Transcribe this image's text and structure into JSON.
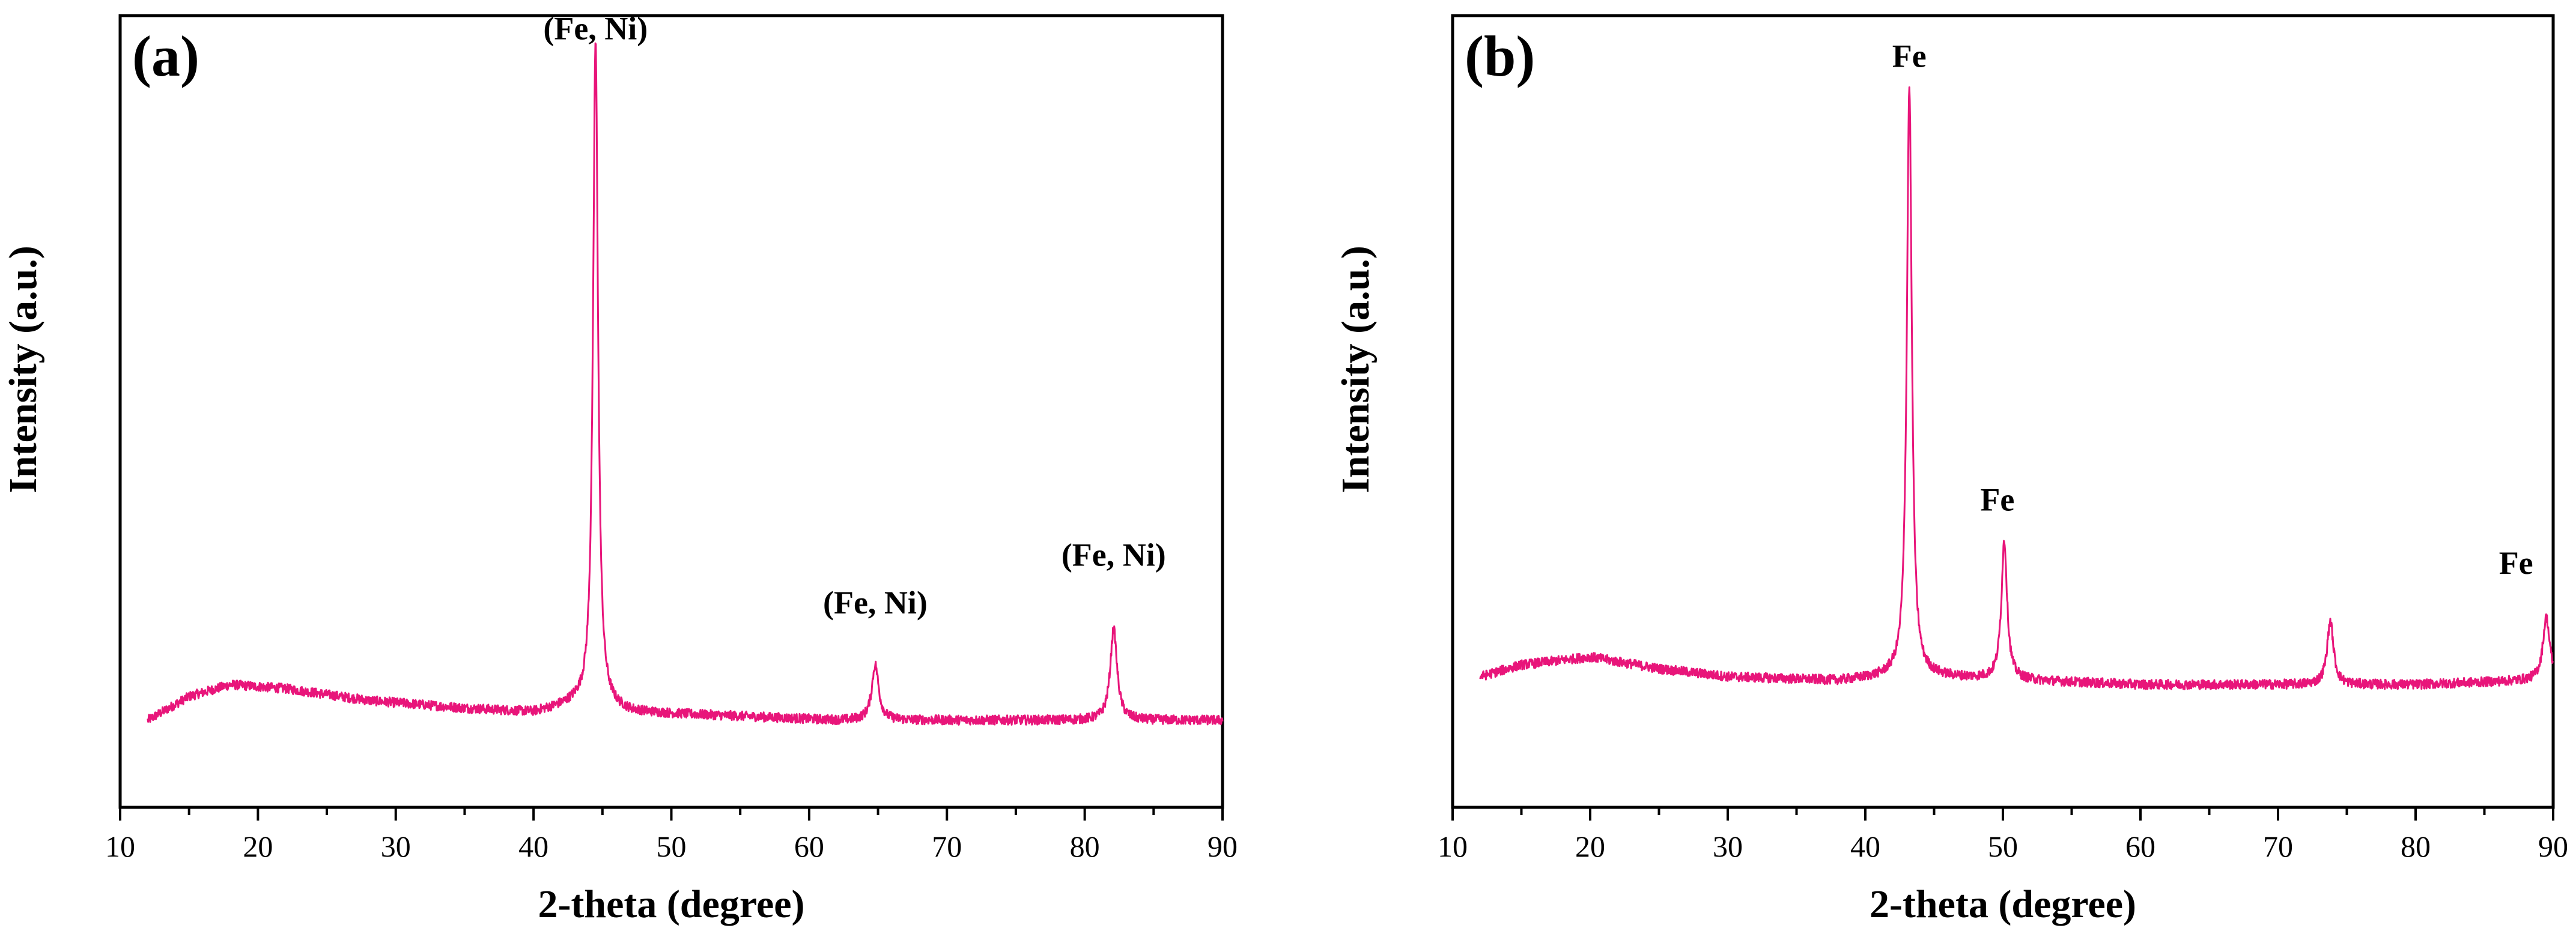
{
  "chart_data": [
    {
      "type": "line",
      "panel_label": "(a)",
      "xlabel": "2-theta (degree)",
      "ylabel": "Intensity (a.u.)",
      "xlim": [
        10,
        90
      ],
      "ylim": [
        0,
        1
      ],
      "xticks": [
        "10",
        "20",
        "30",
        "40",
        "50",
        "60",
        "70",
        "80",
        "90"
      ],
      "series_color": "#e8157a",
      "baseline": [
        [
          12,
          0.11
        ],
        [
          15,
          0.14
        ],
        [
          18,
          0.155
        ],
        [
          22,
          0.15
        ],
        [
          28,
          0.135
        ],
        [
          35,
          0.125
        ],
        [
          40,
          0.12
        ],
        [
          43,
          0.13
        ],
        [
          47,
          0.12
        ],
        [
          55,
          0.115
        ],
        [
          62,
          0.11
        ],
        [
          70,
          0.11
        ],
        [
          78,
          0.11
        ],
        [
          85,
          0.11
        ],
        [
          90,
          0.11
        ]
      ],
      "peaks": [
        {
          "center": 44.5,
          "height": 0.84,
          "width": 0.22
        },
        {
          "center": 64.8,
          "height": 0.07,
          "width": 0.3
        },
        {
          "center": 82.1,
          "height": 0.115,
          "width": 0.3
        }
      ],
      "annotations": [
        {
          "text": "(Fe, Ni)",
          "x": 44.5,
          "y": 0.97
        },
        {
          "text": "(Fe, Ni)",
          "x": 64.8,
          "y": 0.245
        },
        {
          "text": "(Fe, Ni)",
          "x": 82.1,
          "y": 0.305
        }
      ]
    },
    {
      "type": "line",
      "panel_label": "(b)",
      "xlabel": "2-theta (degree)",
      "ylabel": "Intensity (a.u.)",
      "xlim": [
        10,
        90
      ],
      "ylim": [
        0,
        1
      ],
      "xticks": [
        "10",
        "20",
        "30",
        "40",
        "50",
        "60",
        "70",
        "80",
        "90"
      ],
      "series_color": "#e8157a",
      "baseline": [
        [
          12,
          0.165
        ],
        [
          15,
          0.18
        ],
        [
          20,
          0.19
        ],
        [
          25,
          0.175
        ],
        [
          30,
          0.165
        ],
        [
          38,
          0.16
        ],
        [
          42,
          0.165
        ],
        [
          45,
          0.165
        ],
        [
          52,
          0.16
        ],
        [
          60,
          0.155
        ],
        [
          70,
          0.155
        ],
        [
          80,
          0.155
        ],
        [
          88,
          0.16
        ],
        [
          90,
          0.16
        ]
      ],
      "peaks": [
        {
          "center": 43.2,
          "height": 0.745,
          "width": 0.22
        },
        {
          "center": 50.1,
          "height": 0.175,
          "width": 0.25
        },
        {
          "center": 73.8,
          "height": 0.08,
          "width": 0.28
        },
        {
          "center": 89.5,
          "height": 0.08,
          "width": 0.3
        }
      ],
      "annotations": [
        {
          "text": "Fe",
          "x": 43.2,
          "y": 0.935
        },
        {
          "text": "Fe",
          "x": 49.6,
          "y": 0.375
        },
        {
          "text": "Fe",
          "x": 87.3,
          "y": 0.295
        }
      ]
    }
  ]
}
